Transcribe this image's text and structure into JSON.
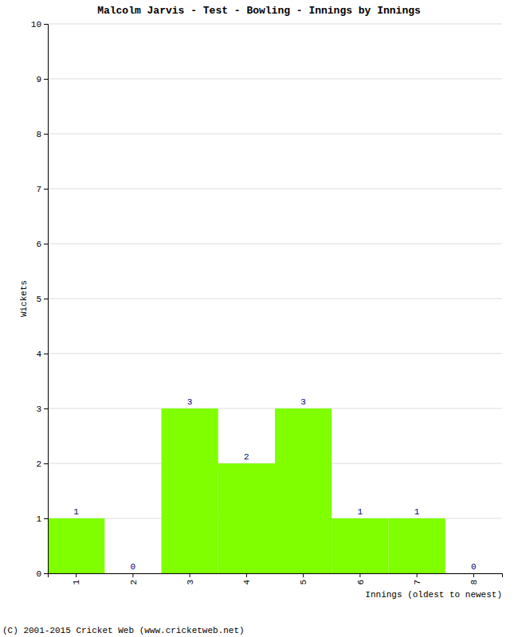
{
  "chart_data": {
    "type": "bar",
    "title": "Malcolm Jarvis - Test - Bowling - Innings by Innings",
    "x_label": "Innings (oldest to newest)",
    "y_label": "Wickets",
    "footer": "(C) 2001-2015 Cricket Web (www.cricketweb.net)",
    "categories": [
      "1",
      "2",
      "3",
      "4",
      "5",
      "6",
      "7",
      "8"
    ],
    "values": [
      1,
      0,
      3,
      2,
      3,
      1,
      1,
      0
    ],
    "color": "#7fff00",
    "ylim": [
      0,
      10
    ],
    "yticks": [
      0,
      1,
      2,
      3,
      4,
      5,
      6,
      7,
      8,
      9,
      10
    ],
    "grid": true,
    "data_labels": true
  }
}
